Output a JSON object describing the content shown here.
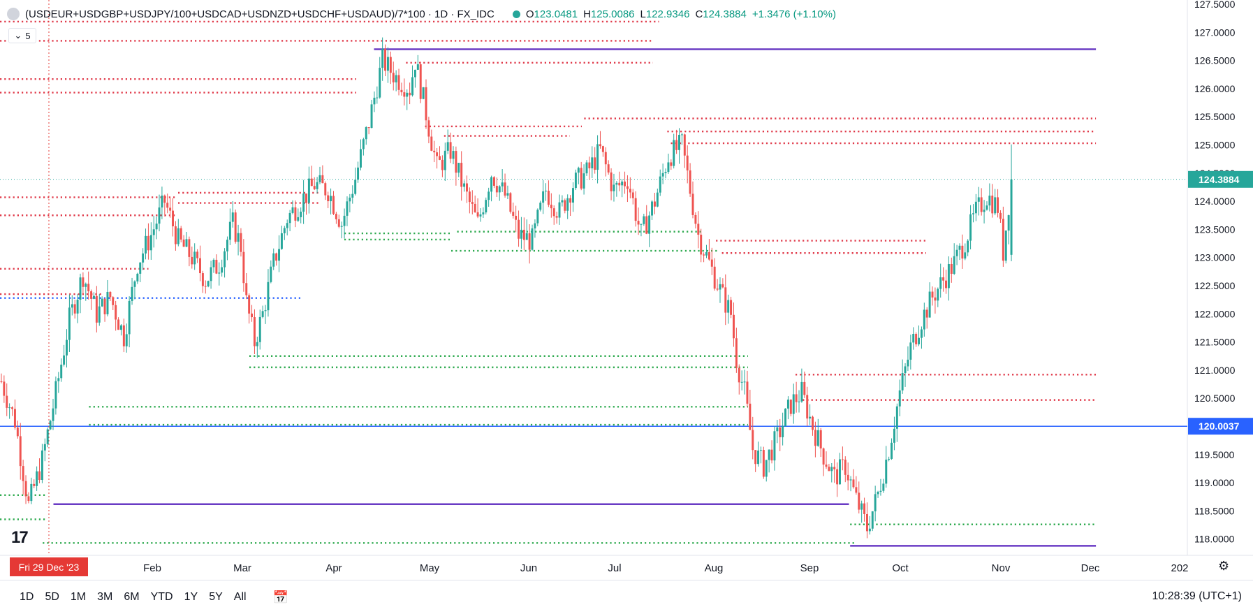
{
  "header": {
    "symbol": "(USDEUR+USDGBP+USDJPY/100+USDCAD+USDNZD+USDCHF+USDAUD)/7*100 · 1D · FX_IDC",
    "ohlc": [
      {
        "k": "O",
        "v": "123.0481"
      },
      {
        "k": "H",
        "v": "125.0086"
      },
      {
        "k": "L",
        "v": "122.9346"
      },
      {
        "k": "C",
        "v": "124.3884"
      }
    ],
    "change": "+1.3476 (+1.10%)",
    "collapse_count": "5"
  },
  "colors": {
    "up": "#26a69a",
    "down": "#ef5350",
    "resistance": "#e03a4a",
    "support": "#2eaa4f",
    "purple": "#6a3bc4",
    "blue": "#2962ff",
    "crosshair": "#e53935"
  },
  "chart_data": {
    "type": "candlestick",
    "ylim": [
      117.75,
      127.55
    ],
    "yticks": [
      "127.5000",
      "127.0000",
      "126.5000",
      "126.0000",
      "125.5000",
      "125.0000",
      "124.5000",
      "124.0000",
      "123.5000",
      "123.0000",
      "122.5000",
      "122.0000",
      "121.5000",
      "121.0000",
      "120.5000",
      "120.0000",
      "119.5000",
      "119.0000",
      "118.5000",
      "118.0000"
    ],
    "x_labels": [
      "Feb",
      "Mar",
      "Apr",
      "May",
      "Jun",
      "Jul",
      "Aug",
      "Sep",
      "Oct",
      "Nov",
      "Dec",
      "202"
    ],
    "crosshair_date": "Fri 29 Dec '23",
    "last_price": "124.3884",
    "hline_label": "120.0037",
    "price_path": [
      [
        0,
        120.8
      ],
      [
        5,
        120.1
      ],
      [
        10,
        118.6
      ],
      [
        15,
        119.4
      ],
      [
        20,
        120.6
      ],
      [
        25,
        121.9
      ],
      [
        30,
        122.7
      ],
      [
        35,
        122.0
      ],
      [
        40,
        122.3
      ],
      [
        45,
        121.6
      ],
      [
        50,
        122.9
      ],
      [
        55,
        123.4
      ],
      [
        60,
        124.0
      ],
      [
        65,
        123.3
      ],
      [
        70,
        123.0
      ],
      [
        75,
        122.6
      ],
      [
        80,
        122.9
      ],
      [
        85,
        123.6
      ],
      [
        88,
        123.2
      ],
      [
        90,
        122.2
      ],
      [
        93,
        121.5
      ],
      [
        96,
        122.0
      ],
      [
        100,
        122.9
      ],
      [
        105,
        123.7
      ],
      [
        110,
        124.0
      ],
      [
        115,
        124.3
      ],
      [
        120,
        124.2
      ],
      [
        125,
        123.6
      ],
      [
        130,
        124.4
      ],
      [
        135,
        125.4
      ],
      [
        140,
        126.5
      ],
      [
        145,
        126.2
      ],
      [
        150,
        126.0
      ],
      [
        152,
        126.5
      ],
      [
        155,
        125.8
      ],
      [
        160,
        124.6
      ],
      [
        165,
        124.9
      ],
      [
        170,
        124.2
      ],
      [
        175,
        123.6
      ],
      [
        180,
        124.5
      ],
      [
        185,
        124.1
      ],
      [
        190,
        123.4
      ],
      [
        195,
        123.3
      ],
      [
        200,
        124.2
      ],
      [
        205,
        123.8
      ],
      [
        210,
        124.3
      ],
      [
        215,
        124.5
      ],
      [
        220,
        124.9
      ],
      [
        225,
        124.2
      ],
      [
        230,
        124.4
      ],
      [
        235,
        123.4
      ],
      [
        240,
        124.0
      ],
      [
        245,
        124.8
      ],
      [
        250,
        125.0
      ],
      [
        253,
        124.2
      ],
      [
        256,
        123.4
      ],
      [
        260,
        122.9
      ],
      [
        265,
        122.3
      ],
      [
        268,
        122.0
      ],
      [
        270,
        121.2
      ],
      [
        273,
        120.6
      ],
      [
        276,
        119.6
      ],
      [
        280,
        119.3
      ],
      [
        285,
        119.8
      ],
      [
        290,
        120.4
      ],
      [
        294,
        120.6
      ],
      [
        298,
        120.0
      ],
      [
        302,
        119.5
      ],
      [
        306,
        119.1
      ],
      [
        310,
        119.3
      ],
      [
        314,
        118.7
      ],
      [
        318,
        118.2
      ],
      [
        322,
        118.8
      ],
      [
        326,
        119.6
      ],
      [
        330,
        120.6
      ],
      [
        334,
        121.4
      ],
      [
        338,
        121.9
      ],
      [
        342,
        122.3
      ],
      [
        346,
        122.6
      ],
      [
        350,
        122.9
      ],
      [
        354,
        123.3
      ],
      [
        358,
        123.8
      ],
      [
        362,
        124.1
      ],
      [
        366,
        123.9
      ],
      [
        368,
        123.1
      ],
      [
        371,
        124.39
      ]
    ],
    "levels_res": [
      {
        "y": 127.19,
        "x1": 0,
        "x2": 0.555
      },
      {
        "y": 126.85,
        "x1": 0,
        "x2": 0.55
      },
      {
        "y": 126.46,
        "x1": 0.342,
        "x2": 0.55
      },
      {
        "y": 126.17,
        "x1": 0,
        "x2": 0.3
      },
      {
        "y": 125.93,
        "x1": 0,
        "x2": 0.3
      },
      {
        "y": 125.47,
        "x1": 0.492,
        "x2": 0.923
      },
      {
        "y": 125.33,
        "x1": 0.358,
        "x2": 0.49
      },
      {
        "y": 125.24,
        "x1": 0.562,
        "x2": 0.923
      },
      {
        "y": 125.16,
        "x1": 0.374,
        "x2": 0.48
      },
      {
        "y": 125.03,
        "x1": 0.565,
        "x2": 0.923
      },
      {
        "y": 124.15,
        "x1": 0.15,
        "x2": 0.27
      },
      {
        "y": 124.07,
        "x1": 0,
        "x2": 0.148
      },
      {
        "y": 123.97,
        "x1": 0.15,
        "x2": 0.27
      },
      {
        "y": 123.75,
        "x1": 0,
        "x2": 0.148
      },
      {
        "y": 123.3,
        "x1": 0.603,
        "x2": 0.78
      },
      {
        "y": 123.08,
        "x1": 0.608,
        "x2": 0.78
      },
      {
        "y": 122.8,
        "x1": 0,
        "x2": 0.125
      },
      {
        "y": 122.35,
        "x1": 0,
        "x2": 0.087
      },
      {
        "y": 120.92,
        "x1": 0.67,
        "x2": 0.923
      },
      {
        "y": 120.47,
        "x1": 0.676,
        "x2": 0.923
      }
    ],
    "levels_sup": [
      {
        "y": 123.43,
        "x1": 0.29,
        "x2": 0.38
      },
      {
        "y": 123.32,
        "x1": 0.29,
        "x2": 0.38
      },
      {
        "y": 123.46,
        "x1": 0.385,
        "x2": 0.59
      },
      {
        "y": 123.12,
        "x1": 0.38,
        "x2": 0.605
      },
      {
        "y": 121.25,
        "x1": 0.21,
        "x2": 0.63
      },
      {
        "y": 121.05,
        "x1": 0.21,
        "x2": 0.63
      },
      {
        "y": 120.35,
        "x1": 0.075,
        "x2": 0.63
      },
      {
        "y": 120.03,
        "x1": 0.075,
        "x2": 0.63
      },
      {
        "y": 118.78,
        "x1": 0,
        "x2": 0.04
      },
      {
        "y": 118.35,
        "x1": 0,
        "x2": 0.04
      },
      {
        "y": 118.26,
        "x1": 0.716,
        "x2": 0.923
      },
      {
        "y": 117.93,
        "x1": 0.036,
        "x2": 0.72
      }
    ],
    "levels_solid": [
      {
        "y": 126.7,
        "x1": 0.315,
        "x2": 0.923,
        "color": "purple"
      },
      {
        "y": 118.62,
        "x1": 0.045,
        "x2": 0.715,
        "color": "purple"
      },
      {
        "y": 117.88,
        "x1": 0.716,
        "x2": 0.923,
        "color": "purple"
      },
      {
        "y": 120.0037,
        "x1": 0,
        "x2": 1,
        "color": "blue"
      },
      {
        "y": 122.28,
        "x1": 0,
        "x2": 0.253,
        "color": "blue",
        "dotted": true
      }
    ]
  },
  "ranges": [
    "1D",
    "5D",
    "1M",
    "3M",
    "6M",
    "YTD",
    "1Y",
    "5Y",
    "All"
  ],
  "time": "10:28:39 (UTC+1)"
}
